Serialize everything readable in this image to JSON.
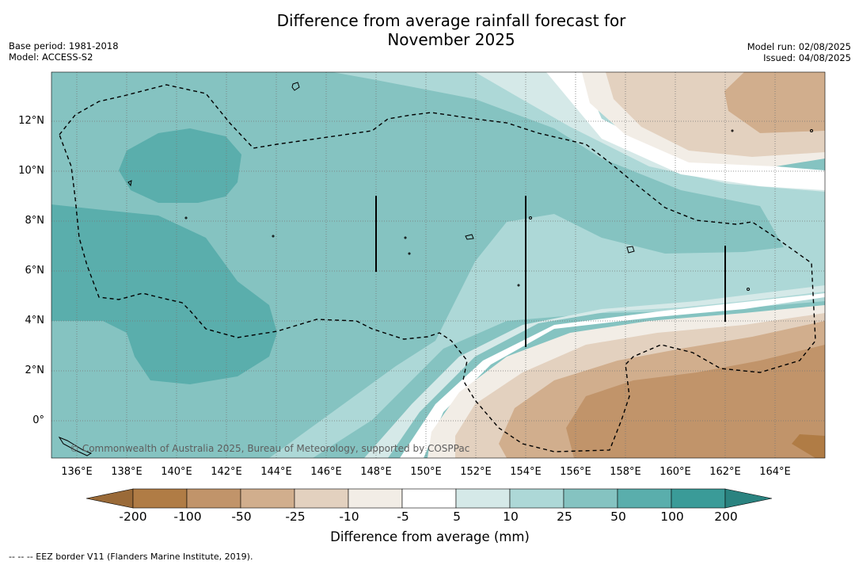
{
  "header": {
    "title_line1": "Difference from average rainfall forecast for",
    "title_line2": "November 2025",
    "base_period": "Base period: 1981-2018",
    "model": "Model: ACCESS-S2",
    "model_run": "Model run: 02/08/2025",
    "issued": "Issued: 04/08/2025"
  },
  "map": {
    "credit": "© Commonwealth of Australia 2025, Bureau of Meteorology, supported by COSPPac",
    "x_ticks": [
      "136°E",
      "138°E",
      "140°E",
      "142°E",
      "144°E",
      "146°E",
      "148°E",
      "150°E",
      "152°E",
      "154°E",
      "156°E",
      "158°E",
      "160°E",
      "162°E",
      "164°E"
    ],
    "y_ticks": [
      "12°N",
      "10°N",
      "8°N",
      "6°N",
      "4°N",
      "2°N",
      "0°"
    ],
    "lon_range": [
      135,
      166
    ],
    "lat_range": [
      -1.5,
      14
    ]
  },
  "legend": {
    "title": "Difference from average (mm)",
    "labels": [
      "-200",
      "-100",
      "-50",
      "-25",
      "-10",
      "-5",
      "5",
      "10",
      "25",
      "50",
      "100",
      "200"
    ],
    "colors": [
      "#9a6a38",
      "#b07c45",
      "#c1946a",
      "#d1ae8d",
      "#e3d1bf",
      "#f2ede6",
      "#ffffff",
      "#d5e9e8",
      "#add8d7",
      "#85c3c1",
      "#5aaeac",
      "#3a9b98",
      "#2a8380"
    ]
  },
  "footnote": "-- -- -- EEZ border V11 (Flanders Marine Institute, 2019)."
}
